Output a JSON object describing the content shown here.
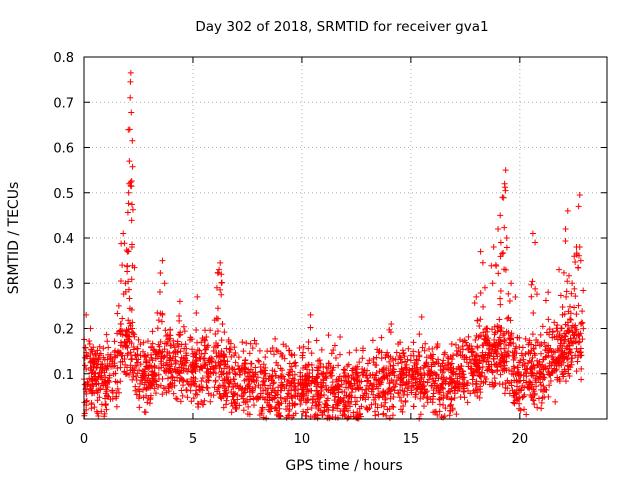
{
  "chart_data": {
    "type": "scatter",
    "title": "Day 302 of 2018, SRMTID for receiver gva1",
    "xlabel": "GPS time / hours",
    "ylabel": "SRMTID / TECUs",
    "xlim": [
      0,
      24
    ],
    "ylim": [
      0,
      0.8
    ],
    "xticks": [
      "0",
      "5",
      "10",
      "15",
      "20"
    ],
    "yticks": [
      "0",
      "0.1",
      "0.2",
      "0.3",
      "0.4",
      "0.5",
      "0.6",
      "0.7",
      "0.8"
    ],
    "grid": true,
    "marker": "+",
    "series": [
      {
        "name": "SRMTID",
        "color": "#ff0000",
        "sampling": "approximate trace read from the figure: dense background plus visible peaks",
        "profile": [
          [
            0.0,
            0.09
          ],
          [
            0.5,
            0.09
          ],
          [
            1.0,
            0.08
          ],
          [
            1.5,
            0.12
          ],
          [
            2.0,
            0.16
          ],
          [
            2.5,
            0.1
          ],
          [
            3.0,
            0.09
          ],
          [
            3.5,
            0.13
          ],
          [
            4.0,
            0.12
          ],
          [
            4.5,
            0.11
          ],
          [
            5.0,
            0.1
          ],
          [
            5.5,
            0.11
          ],
          [
            6.0,
            0.13
          ],
          [
            6.5,
            0.1
          ],
          [
            7.0,
            0.08
          ],
          [
            8.0,
            0.08
          ],
          [
            9.0,
            0.07
          ],
          [
            10.0,
            0.07
          ],
          [
            11.0,
            0.06
          ],
          [
            12.0,
            0.06
          ],
          [
            13.0,
            0.07
          ],
          [
            14.0,
            0.08
          ],
          [
            15.0,
            0.1
          ],
          [
            16.0,
            0.08
          ],
          [
            17.0,
            0.09
          ],
          [
            17.5,
            0.11
          ],
          [
            18.0,
            0.12
          ],
          [
            18.5,
            0.13
          ],
          [
            19.0,
            0.14
          ],
          [
            19.5,
            0.13
          ],
          [
            20.0,
            0.09
          ],
          [
            20.5,
            0.09
          ],
          [
            21.0,
            0.1
          ],
          [
            21.5,
            0.13
          ],
          [
            22.0,
            0.15
          ],
          [
            22.5,
            0.17
          ],
          [
            22.9,
            0.18
          ]
        ],
        "peaks": [
          [
            0.1,
            0.23
          ],
          [
            0.3,
            0.2
          ],
          [
            1.6,
            0.25
          ],
          [
            1.75,
            0.34
          ],
          [
            1.8,
            0.41
          ],
          [
            1.9,
            0.3
          ],
          [
            2.0,
            0.37
          ],
          [
            2.05,
            0.5
          ],
          [
            2.07,
            0.52
          ],
          [
            2.08,
            0.57
          ],
          [
            2.1,
            0.64
          ],
          [
            2.12,
            0.71
          ],
          [
            2.13,
            0.745
          ],
          [
            2.15,
            0.765
          ],
          [
            2.2,
            0.38
          ],
          [
            3.6,
            0.35
          ],
          [
            3.7,
            0.3
          ],
          [
            4.4,
            0.26
          ],
          [
            5.2,
            0.27
          ],
          [
            6.1,
            0.29
          ],
          [
            6.2,
            0.33
          ],
          [
            6.25,
            0.345
          ],
          [
            6.3,
            0.32
          ],
          [
            10.4,
            0.23
          ],
          [
            14.1,
            0.21
          ],
          [
            18.0,
            0.27
          ],
          [
            18.2,
            0.37
          ],
          [
            18.4,
            0.29
          ],
          [
            18.8,
            0.38
          ],
          [
            19.0,
            0.42
          ],
          [
            19.1,
            0.45
          ],
          [
            19.2,
            0.49
          ],
          [
            19.3,
            0.52
          ],
          [
            19.35,
            0.55
          ],
          [
            19.4,
            0.4
          ],
          [
            19.6,
            0.3
          ],
          [
            20.6,
            0.41
          ],
          [
            20.7,
            0.39
          ],
          [
            21.3,
            0.28
          ],
          [
            21.8,
            0.33
          ],
          [
            22.1,
            0.42
          ],
          [
            22.2,
            0.46
          ],
          [
            22.4,
            0.3
          ],
          [
            22.6,
            0.38
          ],
          [
            22.7,
            0.47
          ],
          [
            22.75,
            0.495
          ],
          [
            22.8,
            0.35
          ]
        ]
      }
    ]
  }
}
